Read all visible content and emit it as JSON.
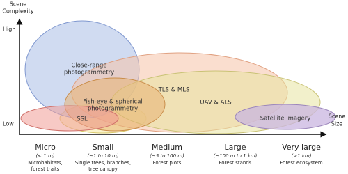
{
  "axes": {
    "y_title": [
      "Scene",
      "Complexity"
    ],
    "y_high": "High",
    "y_low": "Low",
    "x_title": [
      "Scene",
      "Size"
    ]
  },
  "regions": [
    {
      "label": [
        "Close-range",
        "photogrammetry"
      ]
    },
    {
      "label": [
        "TLS & MLS"
      ]
    },
    {
      "label": [
        "UAV & ALS"
      ]
    },
    {
      "label": [
        "Fish-eye & spherical",
        "photogrammetry"
      ]
    },
    {
      "label": [
        "SSL"
      ]
    },
    {
      "label": [
        "Satellite imagery"
      ]
    }
  ],
  "scales": [
    {
      "name": "Micro",
      "range": "(< 1 m)",
      "description": [
        "Microhabitats,",
        "forest traits"
      ]
    },
    {
      "name": "Small",
      "range": "(~1 to 10 m)",
      "description": [
        "Single trees, branches,",
        "tree canopy"
      ]
    },
    {
      "name": "Medium",
      "range": "(~5 to 100 m)",
      "description": [
        "Forest plots"
      ]
    },
    {
      "name": "Large",
      "range": "(~100 m to 1 km)",
      "description": [
        "Forest stands"
      ]
    },
    {
      "name": "Very large",
      "range": "(>1 km)",
      "description": [
        "Forest ecosystem"
      ]
    }
  ]
}
